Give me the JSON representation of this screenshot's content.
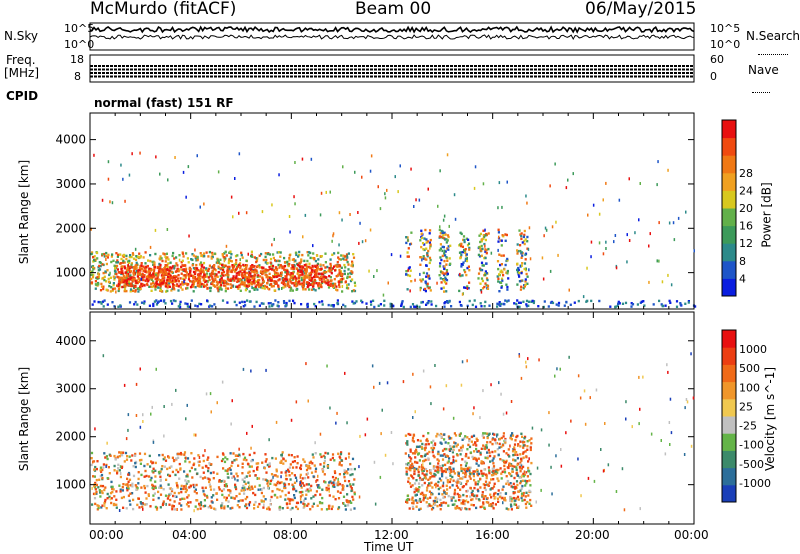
{
  "header": {
    "station": "McMurdo (fitACF)",
    "beam": "Beam 00",
    "date": "06/May/2015"
  },
  "top_panels": {
    "nsky_label": "N.Sky",
    "nsearch_label": "N.Search",
    "freq_label": "Freq.",
    "freq_unit": "[MHz]",
    "nave_label": "Nave",
    "cpid_label": "CPID",
    "cpid_value": "normal (fast) 151 RF",
    "noise_ticks_left": [
      "10^5",
      "10^0"
    ],
    "noise_ticks_right": [
      "10^5",
      "10^0"
    ],
    "freq_ticks": [
      "18",
      "8"
    ],
    "nave_ticks": [
      "60",
      "0"
    ]
  },
  "x_axis": {
    "label": "Time UT",
    "ticks": [
      "00:00",
      "04:00",
      "08:00",
      "12:00",
      "16:00",
      "20:00",
      "00:00"
    ]
  },
  "chart_data": [
    {
      "type": "heatmap",
      "name": "power",
      "ylabel": "Slant Range [km]",
      "yticks": [
        1000,
        2000,
        3000,
        4000
      ],
      "ylim": [
        180,
        4600
      ],
      "xlim": [
        0,
        24
      ],
      "colorbar": {
        "label": "Power [dB]",
        "ticks": [
          "4",
          "8",
          "12",
          "16",
          "20",
          "24",
          "28"
        ],
        "colors": [
          "#0a1ee0",
          "#1e55c8",
          "#2c8a8a",
          "#3c9a5a",
          "#62b04a",
          "#d8c81e",
          "#f0a020",
          "#f07814",
          "#f04a10",
          "#e81010"
        ]
      },
      "bands": [
        {
          "t0": 0.0,
          "t1": 10.5,
          "r0": 600,
          "r1": 1500,
          "level": "strong"
        },
        {
          "t0": 1.0,
          "t1": 10.0,
          "r0": 700,
          "r1": 1200,
          "level": "very_strong"
        },
        {
          "t0": 12.5,
          "t1": 17.5,
          "r0": 600,
          "r1": 2000,
          "level": "patchy"
        },
        {
          "t0": 0.0,
          "t1": 24.0,
          "r0": 250,
          "r1": 400,
          "level": "weak"
        }
      ]
    },
    {
      "type": "heatmap",
      "name": "velocity",
      "ylabel": "Slant Range [km]",
      "yticks": [
        1000,
        2000,
        3000,
        4000
      ],
      "ylim": [
        180,
        4600
      ],
      "xlim": [
        0,
        24
      ],
      "colorbar": {
        "label": "Velocity [m s^-1]",
        "ticks": [
          "1000",
          "500",
          "100",
          "25",
          "-25",
          "-100",
          "-500",
          "-1000"
        ],
        "colors": [
          "#1a3fb8",
          "#2c6e9a",
          "#3c8a6a",
          "#64b448",
          "#c0c0c0",
          "#f0c850",
          "#f0962a",
          "#f06a18",
          "#ec3e12",
          "#e81010"
        ]
      },
      "bands": [
        {
          "t0": 0.0,
          "t1": 10.5,
          "r0": 500,
          "r1": 1700,
          "level": "mixed_negative"
        },
        {
          "t0": 12.5,
          "t1": 17.5,
          "r0": 500,
          "r1": 2100,
          "level": "mixed"
        }
      ]
    }
  ]
}
